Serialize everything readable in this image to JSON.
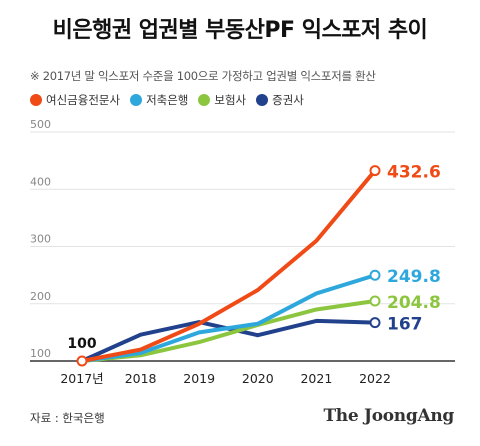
{
  "title": "비은행권 업권별 부동산PF 익스포저 추이",
  "subtitle": "※ 2017년 말 익스포저 수준을 100으로 가정하고 업권별 익스포저를 환산",
  "source": "자료 : 한국은행",
  "brand": "The JoongAng",
  "chart_data": {
    "type": "line",
    "x": [
      "2017년",
      "2018",
      "2019",
      "2020",
      "2021",
      "2022"
    ],
    "ylim": [
      100,
      500
    ],
    "yticks": [
      100,
      200,
      300,
      400,
      500
    ],
    "grid": true,
    "legend_position": "top-left",
    "start_label": "100",
    "series": [
      {
        "name": "여신금융전문사",
        "color": "#f04a16",
        "values": [
          100,
          120,
          165,
          224,
          310,
          432.6
        ],
        "end_label": "432.6"
      },
      {
        "name": "저축은행",
        "color": "#2ea7dd",
        "values": [
          100,
          114,
          150,
          165,
          218,
          249.8
        ],
        "end_label": "249.8"
      },
      {
        "name": "보험사",
        "color": "#8cc63f",
        "values": [
          100,
          110,
          133,
          163,
          190,
          204.8
        ],
        "end_label": "204.8"
      },
      {
        "name": "증권사",
        "color": "#22418c",
        "values": [
          100,
          146,
          168,
          145,
          170,
          167
        ],
        "end_label": "167"
      }
    ]
  }
}
